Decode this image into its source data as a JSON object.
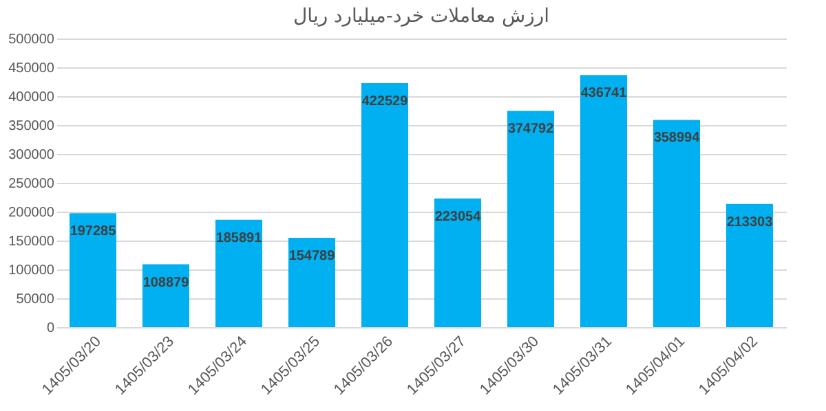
{
  "chart_data": {
    "type": "bar",
    "title": "ارزش معاملات خرد-میلیارد ریال",
    "categories": [
      "1405/03/20",
      "1405/03/23",
      "1405/03/24",
      "1405/03/25",
      "1405/03/26",
      "1405/03/27",
      "1405/03/30",
      "1405/03/31",
      "1405/04/01",
      "1405/04/02"
    ],
    "values": [
      197285,
      108879,
      185891,
      154789,
      422529,
      223054,
      374792,
      436741,
      358994,
      213303
    ],
    "color": "#00b0f0",
    "ylim": [
      0,
      500000
    ],
    "yticks": [
      0,
      50000,
      100000,
      150000,
      200000,
      250000,
      300000,
      350000,
      400000,
      450000,
      500000
    ],
    "grid": "y",
    "data_labels": true
  }
}
